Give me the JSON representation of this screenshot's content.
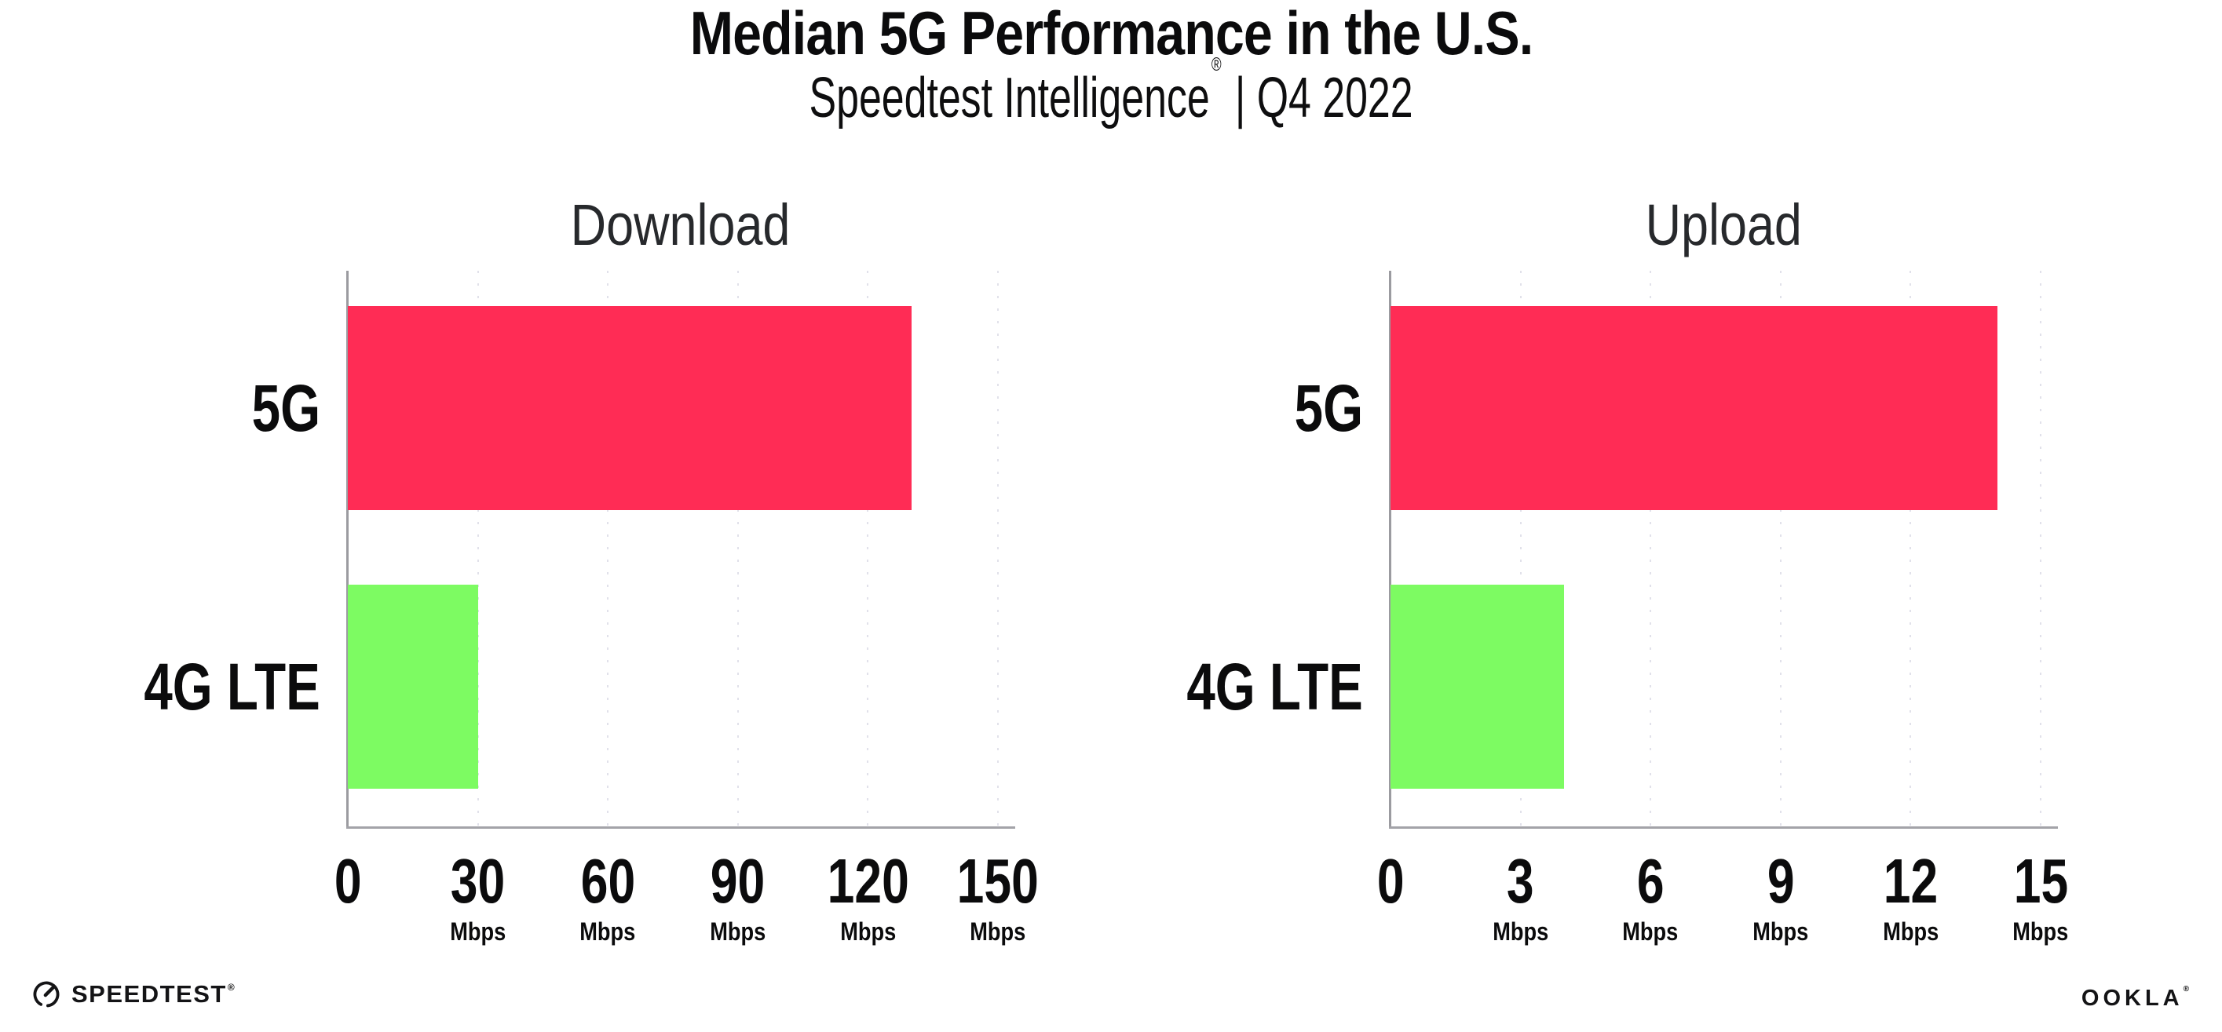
{
  "header": {
    "title": "Median 5G Performance in the U.S.",
    "subtitle_brand": "Speedtest Intelligence",
    "subtitle_reg": "®",
    "subtitle_period": "| Q4 2022"
  },
  "chart_data": [
    {
      "type": "bar",
      "orientation": "horizontal",
      "title": "Download",
      "categories": [
        "5G",
        "4G LTE"
      ],
      "values": [
        130,
        30
      ],
      "unit": "Mbps",
      "xlim": [
        0,
        150
      ],
      "xticks": [
        0,
        30,
        60,
        90,
        120,
        150
      ],
      "bar_colors": [
        "#ff2c55",
        "#7dfb62"
      ],
      "grid": "dotted-vertical",
      "legend": "none"
    },
    {
      "type": "bar",
      "orientation": "horizontal",
      "title": "Upload",
      "categories": [
        "5G",
        "4G LTE"
      ],
      "values": [
        14,
        4
      ],
      "unit": "Mbps",
      "xlim": [
        0,
        15
      ],
      "xticks": [
        0,
        3,
        6,
        9,
        12,
        15
      ],
      "bar_colors": [
        "#ff2c55",
        "#7dfb62"
      ],
      "grid": "dotted-vertical",
      "legend": "none"
    }
  ],
  "footer": {
    "speedtest_wordmark": "SPEEDTEST",
    "speedtest_reg": "®",
    "ookla_wordmark": "OOKLA",
    "ookla_reg": "®"
  },
  "colors": {
    "bar_5g": "#ff2c55",
    "bar_4g_lte": "#7dfb62",
    "axis_line": "#a3a3a8",
    "grid_dots": "#e1e1ea",
    "title_text": "#0b0b0c",
    "chart_title_text": "#27292c"
  }
}
